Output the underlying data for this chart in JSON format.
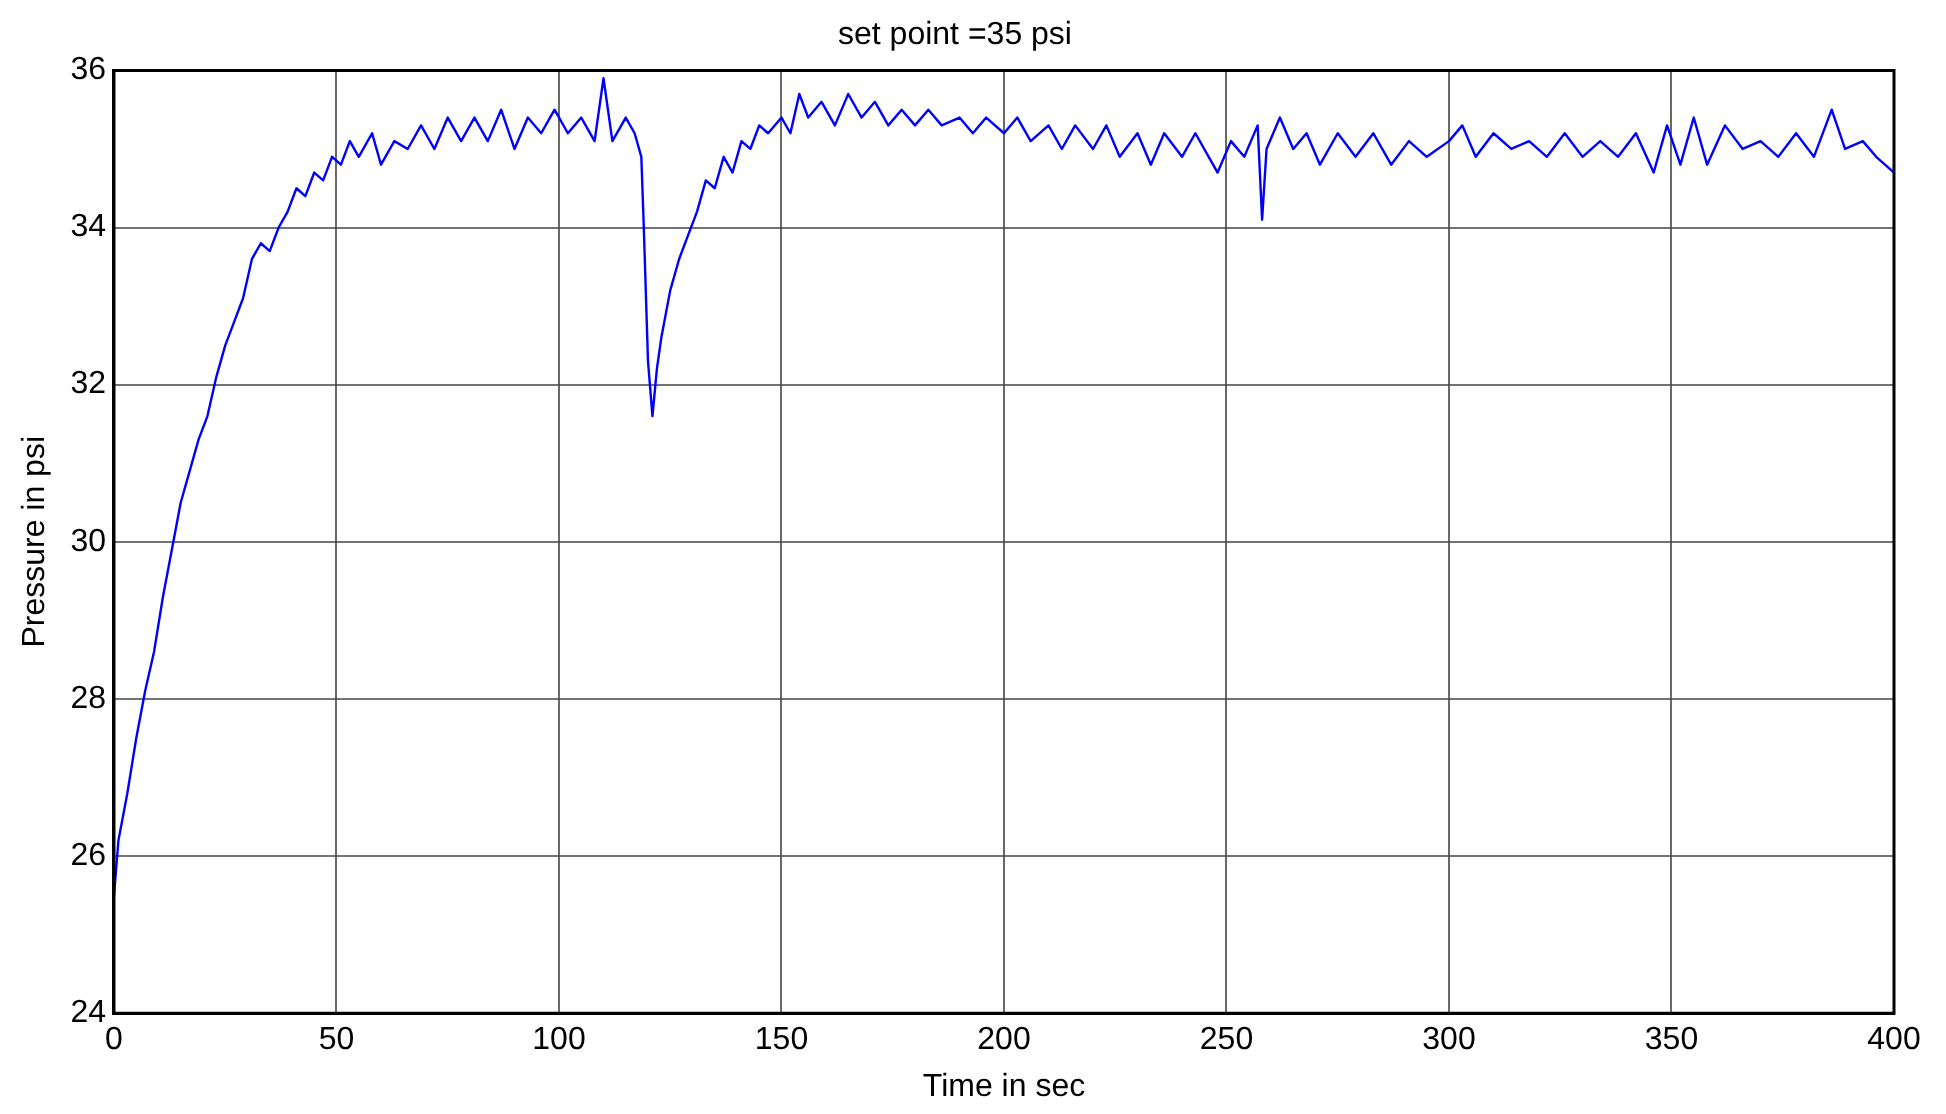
{
  "chart_data": {
    "type": "line",
    "title": "set point =35 psi",
    "xlabel": "Time in sec",
    "ylabel": "Pressure in psi",
    "xlim": [
      0,
      400
    ],
    "xticks": [
      0,
      50,
      100,
      150,
      200,
      250,
      300,
      350,
      400
    ],
    "ylim": [
      24,
      36
    ],
    "yticks": [
      24,
      26,
      28,
      30,
      32,
      34,
      36
    ],
    "grid": true,
    "legend": false,
    "marker": "none",
    "line_style": "solid",
    "x": [
      0,
      1,
      3,
      5,
      7,
      9,
      11,
      13,
      15,
      17,
      19,
      21,
      23,
      25,
      27,
      29,
      31,
      33,
      35,
      37,
      39,
      41,
      43,
      45,
      47,
      49,
      51,
      53,
      55,
      58,
      60,
      63,
      66,
      69,
      72,
      75,
      78,
      81,
      84,
      87,
      90,
      93,
      96,
      99,
      102,
      105,
      108,
      110,
      112,
      115,
      117,
      118.5,
      119,
      120,
      121,
      122,
      123,
      125,
      127,
      129,
      131,
      133,
      135,
      137,
      139,
      141,
      143,
      145,
      147,
      150,
      152,
      154,
      156,
      159,
      162,
      165,
      168,
      171,
      174,
      177,
      180,
      183,
      186,
      190,
      193,
      196,
      200,
      203,
      206,
      210,
      213,
      216,
      220,
      223,
      226,
      230,
      233,
      236,
      240,
      243,
      246,
      248,
      251,
      254,
      257,
      258,
      259,
      262,
      265,
      268,
      271,
      275,
      279,
      283,
      287,
      291,
      295,
      300,
      303,
      306,
      310,
      314,
      318,
      322,
      326,
      330,
      334,
      338,
      342,
      346,
      349,
      352,
      355,
      358,
      362,
      366,
      370,
      374,
      378,
      382,
      386,
      389,
      393,
      396,
      400
    ],
    "series": [
      {
        "color": "#0000ff",
        "values": [
          25.5,
          26.2,
          26.8,
          27.5,
          28.1,
          28.6,
          29.3,
          29.9,
          30.5,
          30.9,
          31.3,
          31.6,
          32.1,
          32.5,
          32.8,
          33.1,
          33.6,
          33.8,
          33.7,
          34.0,
          34.2,
          34.5,
          34.4,
          34.7,
          34.6,
          34.9,
          34.8,
          35.1,
          34.9,
          35.2,
          34.8,
          35.1,
          35.0,
          35.3,
          35.0,
          35.4,
          35.1,
          35.4,
          35.1,
          35.5,
          35.0,
          35.4,
          35.2,
          35.5,
          35.2,
          35.4,
          35.1,
          35.9,
          35.1,
          35.4,
          35.2,
          34.9,
          34.1,
          32.3,
          31.6,
          32.2,
          32.6,
          33.2,
          33.6,
          33.9,
          34.2,
          34.6,
          34.5,
          34.9,
          34.7,
          35.1,
          35.0,
          35.3,
          35.2,
          35.4,
          35.2,
          35.7,
          35.4,
          35.6,
          35.3,
          35.7,
          35.4,
          35.6,
          35.3,
          35.5,
          35.3,
          35.5,
          35.3,
          35.4,
          35.2,
          35.4,
          35.2,
          35.4,
          35.1,
          35.3,
          35.0,
          35.3,
          35.0,
          35.3,
          34.9,
          35.2,
          34.8,
          35.2,
          34.9,
          35.2,
          34.9,
          34.7,
          35.1,
          34.9,
          35.3,
          34.1,
          35.0,
          35.4,
          35.0,
          35.2,
          34.8,
          35.2,
          34.9,
          35.2,
          34.8,
          35.1,
          34.9,
          35.1,
          35.3,
          34.9,
          35.2,
          35.0,
          35.1,
          34.9,
          35.2,
          34.9,
          35.1,
          34.9,
          35.2,
          34.7,
          35.3,
          34.8,
          35.4,
          34.8,
          35.3,
          35.0,
          35.1,
          34.9,
          35.2,
          34.9,
          35.5,
          35.0,
          35.1,
          34.9,
          34.7
        ]
      }
    ]
  }
}
